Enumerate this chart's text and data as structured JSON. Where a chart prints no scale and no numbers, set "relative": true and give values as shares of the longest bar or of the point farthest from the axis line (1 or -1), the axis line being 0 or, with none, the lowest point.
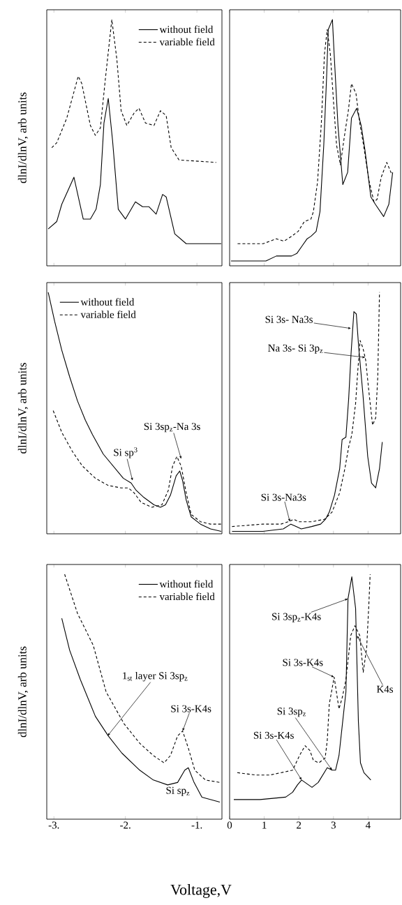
{
  "chart_data": [
    {
      "type": "line",
      "relative": true,
      "xlim": [
        -3.1,
        -0.65
      ],
      "xticks": [
        -3,
        -2,
        -1
      ],
      "tick_labels": false,
      "legend": "top right",
      "ylabel": "dlnI/dlnV, arb units",
      "series": [
        {
          "name": "without field",
          "color": "#000000",
          "line_style": "solid",
          "x": [
            -3.08,
            -2.96,
            -2.89,
            -2.72,
            -2.59,
            -2.49,
            -2.41,
            -2.35,
            -2.3,
            -2.24,
            -2.18,
            -2.1,
            -2.0,
            -1.86,
            -1.76,
            -1.67,
            -1.57,
            -1.48,
            -1.43,
            -1.31,
            -1.15,
            -0.66
          ],
          "values": [
            0.15,
            0.18,
            0.25,
            0.36,
            0.19,
            0.19,
            0.23,
            0.33,
            0.58,
            0.68,
            0.51,
            0.23,
            0.19,
            0.26,
            0.24,
            0.24,
            0.21,
            0.29,
            0.28,
            0.13,
            0.09,
            0.09
          ]
        },
        {
          "name": "variable field",
          "color": "#000000",
          "line_style": "dashed",
          "x": [
            -3.03,
            -2.96,
            -2.82,
            -2.66,
            -2.61,
            -2.49,
            -2.42,
            -2.35,
            -2.28,
            -2.19,
            -2.12,
            -2.06,
            -1.98,
            -1.88,
            -1.81,
            -1.72,
            -1.6,
            -1.51,
            -1.43,
            -1.36,
            -1.25,
            -0.73
          ],
          "values": [
            0.48,
            0.5,
            0.6,
            0.77,
            0.74,
            0.57,
            0.53,
            0.56,
            0.76,
            1,
            0.84,
            0.63,
            0.57,
            0.62,
            0.64,
            0.58,
            0.57,
            0.63,
            0.61,
            0.48,
            0.43,
            0.42
          ]
        }
      ]
    },
    {
      "type": "line",
      "relative": true,
      "xlim": [
        0,
        4.94
      ],
      "xticks": [
        0,
        1,
        2,
        3,
        4
      ],
      "tick_labels": false,
      "series": [
        {
          "color": "#000000",
          "line_style": "solid",
          "x": [
            0.04,
            0.75,
            1.05,
            1.35,
            1.49,
            1.64,
            1.79,
            1.94,
            2.09,
            2.24,
            2.35,
            2.5,
            2.61,
            2.72,
            2.8,
            2.85,
            2.97,
            3.02,
            3.13,
            3.27,
            3.41,
            3.52,
            3.67,
            3.8,
            3.91,
            4.08,
            4.21,
            4.45,
            4.6,
            4.71
          ],
          "values": [
            0.02,
            0.02,
            0.02,
            0.04,
            0.04,
            0.04,
            0.04,
            0.05,
            0.08,
            0.11,
            0.12,
            0.14,
            0.22,
            0.49,
            0.76,
            0.96,
            1,
            0.86,
            0.57,
            0.33,
            0.38,
            0.6,
            0.64,
            0.57,
            0.47,
            0.28,
            0.25,
            0.2,
            0.25,
            0.38
          ]
        },
        {
          "color": "#000000",
          "line_style": "dashed",
          "x": [
            0.23,
            0.97,
            1.35,
            1.57,
            1.79,
            1.98,
            2.16,
            2.35,
            2.42,
            2.54,
            2.65,
            2.74,
            2.82,
            2.91,
            3.0,
            3.09,
            3.2,
            3.32,
            3.43,
            3.52,
            3.65,
            3.76,
            3.87,
            4.02,
            4.17,
            4.26,
            4.38,
            4.54,
            4.69
          ],
          "values": [
            0.09,
            0.09,
            0.11,
            0.1,
            0.12,
            0.14,
            0.18,
            0.19,
            0.22,
            0.34,
            0.58,
            0.86,
            0.96,
            0.86,
            0.67,
            0.49,
            0.41,
            0.53,
            0.63,
            0.74,
            0.7,
            0.58,
            0.49,
            0.35,
            0.26,
            0.27,
            0.36,
            0.42,
            0.37
          ]
        }
      ]
    },
    {
      "type": "line",
      "relative": true,
      "xlim": [
        -3.1,
        -0.65
      ],
      "xticks": [
        -3,
        -2,
        -1
      ],
      "tick_labels": false,
      "legend": "top left",
      "ylabel": "dlnI/dlnV, arb units",
      "annotations": [
        {
          "text": "Si sp$^{3}$",
          "x": -1.9,
          "y": 0.22
        },
        {
          "text": "Si 3sp$_{z}$-Na 3s",
          "x": -1.22,
          "y": 0.31
        }
      ],
      "series": [
        {
          "name": "without field",
          "color": "#000000",
          "line_style": "solid",
          "x": [
            -3.08,
            -2.99,
            -2.89,
            -2.78,
            -2.67,
            -2.56,
            -2.46,
            -2.31,
            -2.17,
            -2.03,
            -1.92,
            -1.85,
            -1.74,
            -1.6,
            -1.51,
            -1.44,
            -1.37,
            -1.29,
            -1.24,
            -1.2,
            -1.15,
            -1.08,
            -0.95,
            -0.81,
            -0.66
          ],
          "values": [
            1,
            0.88,
            0.76,
            0.65,
            0.55,
            0.47,
            0.41,
            0.33,
            0.28,
            0.23,
            0.21,
            0.18,
            0.15,
            0.12,
            0.11,
            0.12,
            0.16,
            0.24,
            0.26,
            0.22,
            0.14,
            0.07,
            0.04,
            0.02,
            0.01
          ]
        },
        {
          "name": "variable field",
          "color": "#000000",
          "line_style": "dashed",
          "x": [
            -3.01,
            -2.89,
            -2.74,
            -2.6,
            -2.42,
            -2.24,
            -2.06,
            -1.96,
            -1.88,
            -1.78,
            -1.63,
            -1.49,
            -1.4,
            -1.34,
            -1.28,
            -1.22,
            -1.15,
            -1.08,
            -0.95,
            -0.81,
            -0.66
          ],
          "values": [
            0.51,
            0.42,
            0.34,
            0.28,
            0.23,
            0.2,
            0.19,
            0.19,
            0.17,
            0.13,
            0.11,
            0.12,
            0.18,
            0.28,
            0.32,
            0.28,
            0.17,
            0.08,
            0.05,
            0.04,
            0.04
          ]
        }
      ]
    },
    {
      "type": "line",
      "relative": true,
      "xlim": [
        0,
        4.94
      ],
      "xticks": [
        0,
        1,
        2,
        3,
        4
      ],
      "tick_labels": false,
      "annotations": [
        {
          "text": "Si 3s- Na3s",
          "x": 3.51,
          "y": 0.85
        },
        {
          "text": "Na 3s- Si 3p$_{z}$",
          "x": 3.92,
          "y": 0.73
        },
        {
          "text": "Si 3s-Na3s",
          "x": 1.74,
          "y": 0.05
        }
      ],
      "series": [
        {
          "color": "#000000",
          "line_style": "solid",
          "x": [
            0.07,
            0.96,
            1.55,
            1.77,
            1.92,
            2.07,
            2.37,
            2.63,
            2.77,
            2.88,
            3.03,
            3.18,
            3.25,
            3.36,
            3.44,
            3.51,
            3.59,
            3.66,
            3.73,
            3.85,
            3.99,
            4.1,
            4.22,
            4.33,
            4.41
          ],
          "values": [
            0.01,
            0.01,
            0.02,
            0.04,
            0.03,
            0.02,
            0.03,
            0.04,
            0.06,
            0.09,
            0.16,
            0.27,
            0.39,
            0.4,
            0.56,
            0.75,
            0.92,
            0.91,
            0.77,
            0.58,
            0.32,
            0.21,
            0.19,
            0.27,
            0.38
          ]
        },
        {
          "color": "#000000",
          "line_style": "dashed",
          "x": [
            0.07,
            0.96,
            1.48,
            1.7,
            1.85,
            2.0,
            2.37,
            2.74,
            2.96,
            3.18,
            3.33,
            3.44,
            3.53,
            3.64,
            3.7,
            3.77,
            3.85,
            3.93,
            4.03,
            4.13,
            4.22,
            4.28,
            4.33
          ],
          "values": [
            0.03,
            0.04,
            0.04,
            0.05,
            0.06,
            0.05,
            0.05,
            0.06,
            0.09,
            0.17,
            0.27,
            0.36,
            0.41,
            0.54,
            0.67,
            0.8,
            0.77,
            0.72,
            0.58,
            0.45,
            0.48,
            0.65,
            1
          ]
        }
      ]
    },
    {
      "type": "line",
      "relative": true,
      "xlim": [
        -3.1,
        -0.65
      ],
      "xticks": [
        {
          "value": -3,
          "label": "-3."
        },
        {
          "value": -2,
          "label": "-2."
        },
        {
          "value": -1,
          "label": "-1."
        }
      ],
      "legend": "top right",
      "ylabel": "dlnI/dlnV, arb units",
      "xlabel": "Voltage,V",
      "annotations": [
        {
          "text": "1$_{st}$ layer Si 3sp$_{z}$",
          "x": -2.25,
          "y": 0.34
        },
        {
          "text": "Si 3s-K4s",
          "x": -1.2,
          "y": 0.36
        },
        {
          "text": "Si sp$_{z}$",
          "x": -1.12,
          "y": 0.21
        }
      ],
      "series": [
        {
          "name": "without field",
          "color": "#000000",
          "line_style": "solid",
          "x": [
            -2.89,
            -2.78,
            -2.63,
            -2.42,
            -2.24,
            -2.05,
            -1.8,
            -1.61,
            -1.41,
            -1.27,
            -1.17,
            -1.12,
            -1.04,
            -0.93,
            -0.68
          ],
          "values": [
            0.82,
            0.69,
            0.57,
            0.42,
            0.34,
            0.27,
            0.2,
            0.16,
            0.14,
            0.15,
            0.2,
            0.21,
            0.15,
            0.09,
            0.07
          ]
        },
        {
          "name": "variable field",
          "color": "#000000",
          "line_style": "dashed",
          "x": [
            -2.85,
            -2.67,
            -2.45,
            -2.27,
            -2.02,
            -1.8,
            -1.61,
            -1.46,
            -1.37,
            -1.27,
            -1.2,
            -1.12,
            -1.03,
            -0.88,
            -0.68
          ],
          "values": [
            1,
            0.84,
            0.71,
            0.52,
            0.39,
            0.31,
            0.26,
            0.23,
            0.26,
            0.34,
            0.36,
            0.29,
            0.2,
            0.16,
            0.15
          ]
        }
      ]
    },
    {
      "type": "line",
      "relative": true,
      "xlim": [
        0,
        4.94
      ],
      "xticks": [
        0,
        1,
        2,
        3,
        4
      ],
      "annotations": [
        {
          "text": "Si 3sp$_{z}$-K4s",
          "x": 3.42,
          "y": 0.9
        },
        {
          "text": "Si 3s-K4s",
          "x": 3.02,
          "y": 0.58
        },
        {
          "text": "Si 3sp$_{z}$",
          "x": 2.96,
          "y": 0.2
        },
        {
          "text": "Si 3s-K4s",
          "x": 2.08,
          "y": 0.16
        },
        {
          "text": "K4s",
          "x": 3.68,
          "y": 0.75
        }
      ],
      "series": [
        {
          "color": "#000000",
          "line_style": "solid",
          "x": [
            0.12,
            0.88,
            1.62,
            1.82,
            1.96,
            2.08,
            2.38,
            2.56,
            2.82,
            2.96,
            3.06,
            3.16,
            3.26,
            3.36,
            3.42,
            3.53,
            3.64,
            3.72,
            3.78,
            3.88,
            4.08
          ],
          "values": [
            0.08,
            0.08,
            0.09,
            0.11,
            0.14,
            0.16,
            0.13,
            0.15,
            0.21,
            0.2,
            0.2,
            0.26,
            0.39,
            0.52,
            0.9,
            0.99,
            0.86,
            0.4,
            0.23,
            0.19,
            0.16
          ]
        },
        {
          "color": "#000000",
          "line_style": "dashed",
          "x": [
            0.22,
            0.76,
            1.16,
            1.82,
            2.02,
            2.18,
            2.32,
            2.42,
            2.58,
            2.76,
            2.82,
            2.88,
            3.02,
            3.16,
            3.26,
            3.36,
            3.5,
            3.62,
            3.76,
            3.86,
            3.96,
            4.02,
            4.06
          ],
          "values": [
            0.19,
            0.18,
            0.18,
            0.2,
            0.26,
            0.3,
            0.28,
            0.24,
            0.23,
            0.25,
            0.32,
            0.47,
            0.58,
            0.45,
            0.5,
            0.57,
            0.75,
            0.79,
            0.75,
            0.6,
            0.7,
            0.87,
            1
          ]
        }
      ]
    }
  ]
}
